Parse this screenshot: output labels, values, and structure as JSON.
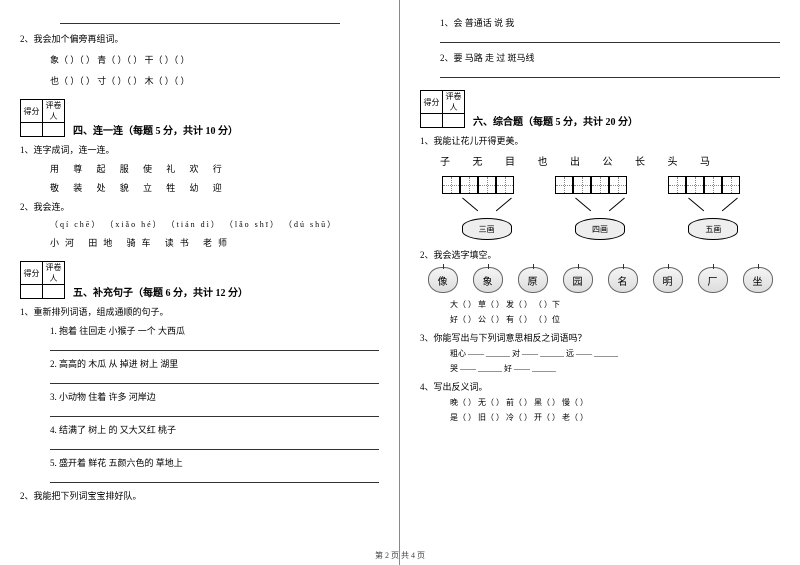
{
  "left": {
    "q2": "2、我会加个偏旁再组词。",
    "q2_line1": "象（   ）（      ）  青（   ）（      ）  干（   ）（      ）",
    "q2_line2": "也（   ）（      ）  寸（   ）（      ）  木（   ）（      ）",
    "score_header1": "得分",
    "score_header2": "评卷人",
    "section4": "四、连一连（每题 5 分，共计 10 分）",
    "s4_q1": "1、连字成词，连一连。",
    "s4_row1": "用   尊   起   服   使   礼   欢   行",
    "s4_row2": "敬   装   处   貌   立   牲   幼   迎",
    "s4_q2": "2、我会连。",
    "s4_pinyin": "（qí chē）  （xiǎo hé）  （tián dì）  （lǎo shī）  （dú shū）",
    "s4_words": "小河      田地      骑车      读书      老师",
    "section5": "五、补充句子（每题 6 分，共计 12 分）",
    "s5_q1": "1、重新排列词语，组成通顺的句子。",
    "s5_i1": "1. 抱着    往回走    小猴子    一个    大西瓜",
    "s5_i2": "2. 高高的    木瓜    从    掉进    树上    湖里",
    "s5_i3": "3. 小动物    住着    许多    河岸边",
    "s5_i4": "4. 结满了    树上    的    又大又红    桃子",
    "s5_i5": "5. 盛开着    鲜花    五颜六色的    草地上",
    "s5_q2": "2、我能把下列词宝宝排好队。"
  },
  "right": {
    "q1": "1、会    普通话    说    我",
    "q2": "2、要    马路    走    过    斑马线",
    "score_header1": "得分",
    "score_header2": "评卷人",
    "section6": "六、综合题（每题 5 分，共计 20 分）",
    "s6_q1": "1、我能让花儿开得更美。",
    "chars": "子   无   目   也   出   公   长   头   马",
    "pot1": "三画",
    "pot2": "四画",
    "pot3": "五画",
    "s6_q2": "2、我会选字填空。",
    "apples": [
      "像",
      "象",
      "原",
      "园",
      "名",
      "明",
      "厂",
      "坐"
    ],
    "pr1": "大（   ）    草（   ）    发（   ）    （   ）下",
    "pr2": "好（   ）    公（   ）    有（   ）    （   ）位",
    "s6_q3": "3、你能写出与下列词意思相反之词语吗？",
    "pr3": "粗心 —— ______        对 —— ______        远 —— ______",
    "pr4": "哭 —— ______                              好 —— ______",
    "s6_q4": "4、写出反义词。",
    "pr5": "晚（   ）   无（   ）   前（   ）   黑（   ）   慢（   ）",
    "pr6": "是（   ）   旧（   ）   冷（   ）   开（   ）   老（   ）"
  },
  "footer": "第 2 页 共 4 页"
}
